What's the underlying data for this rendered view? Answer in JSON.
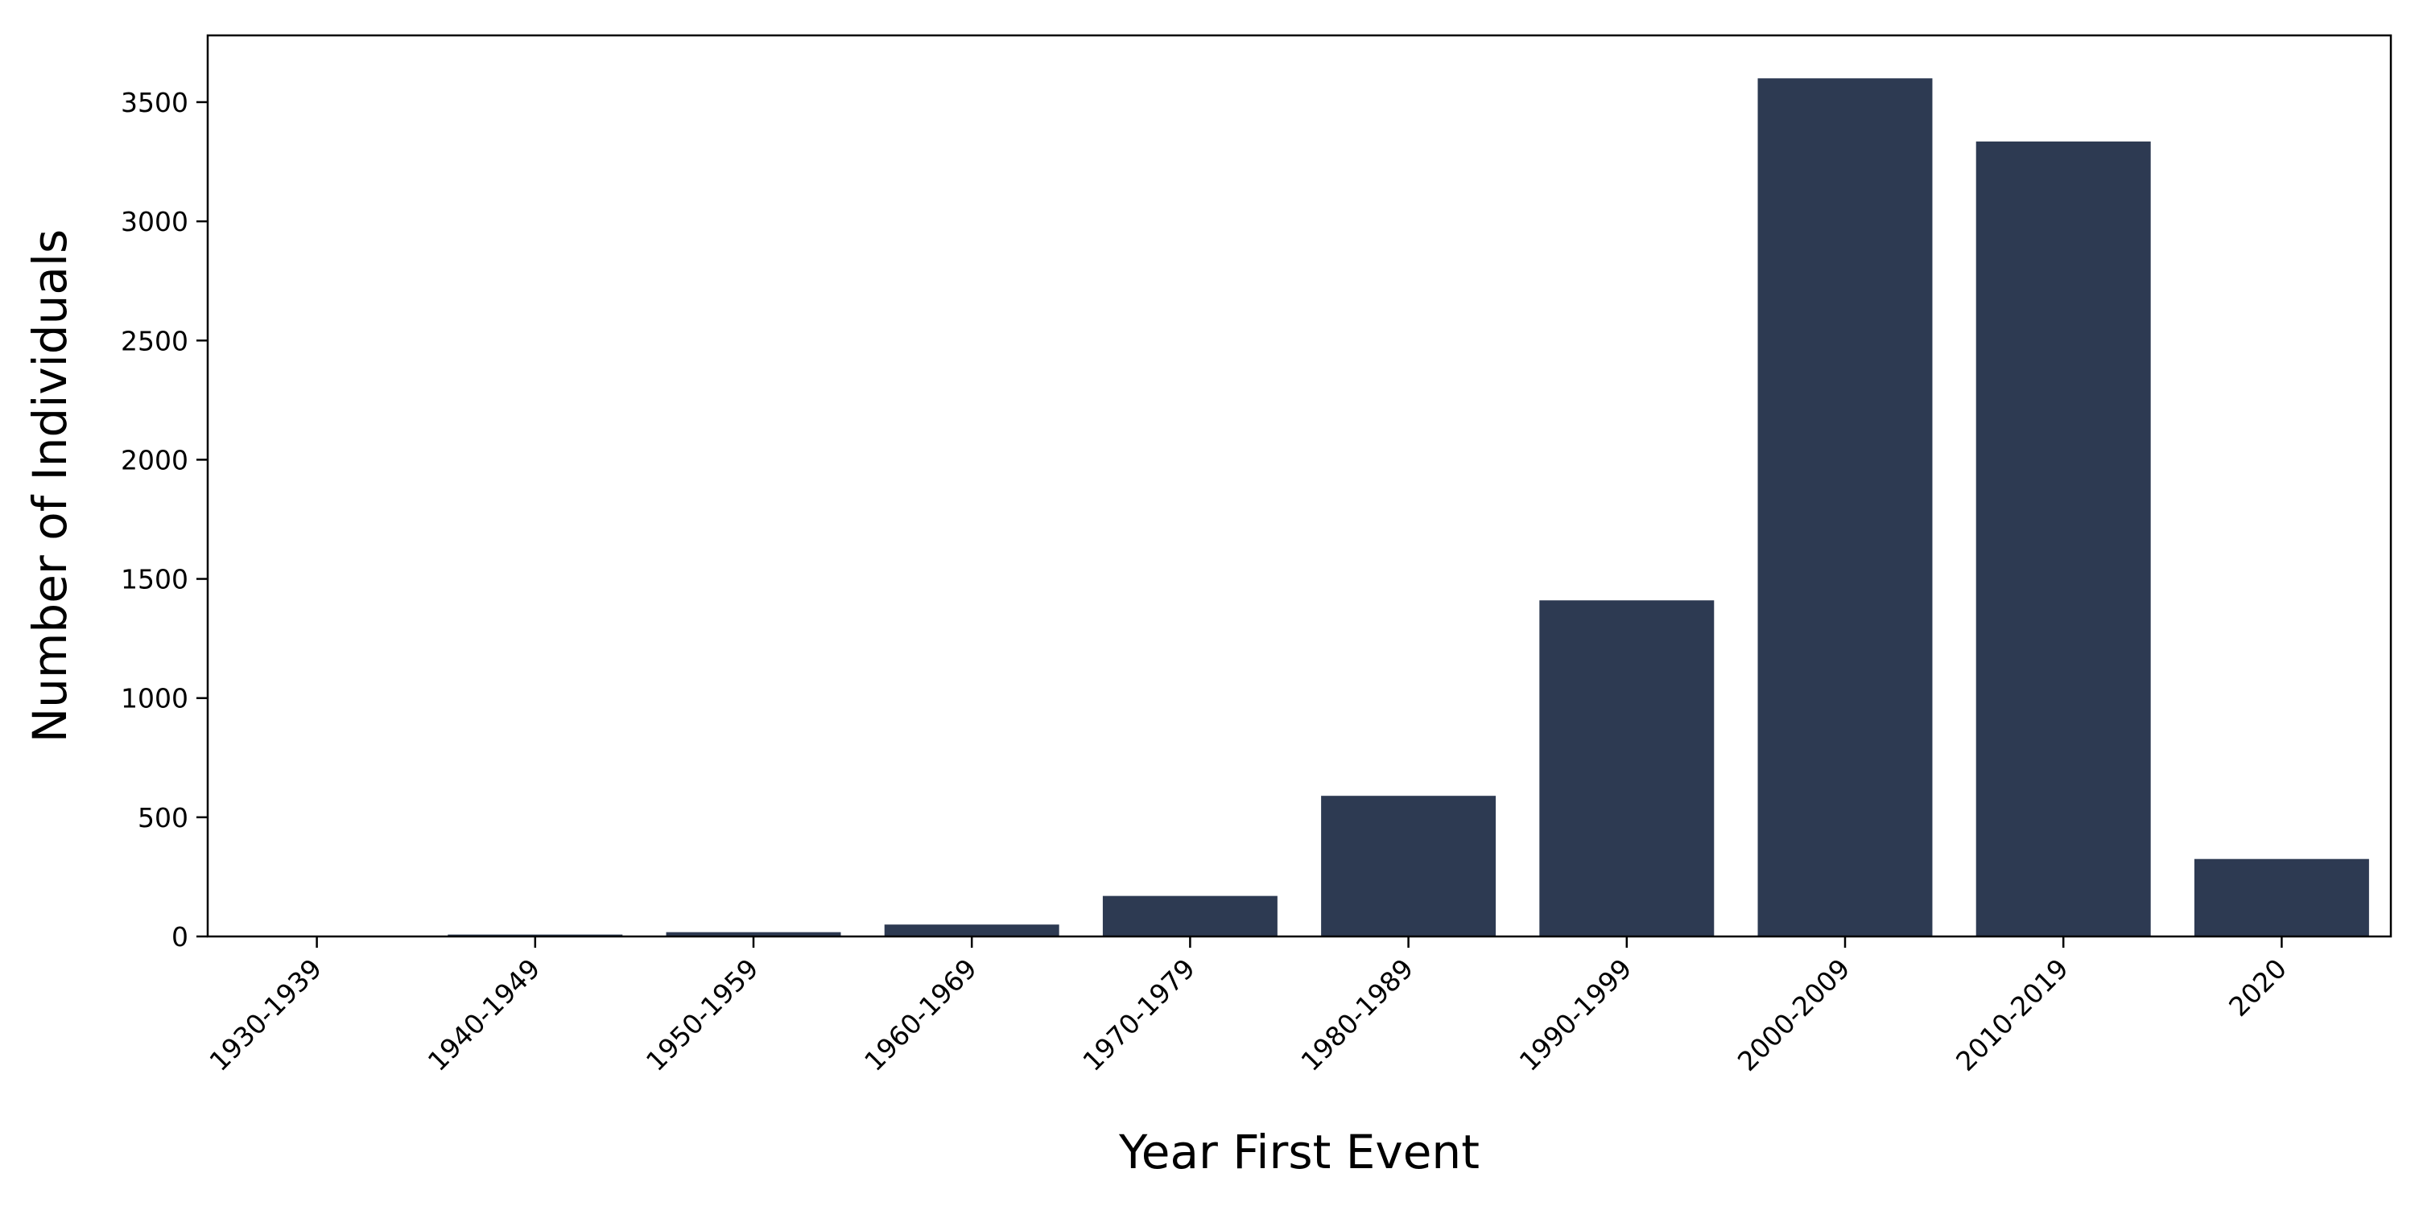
{
  "chart_data": {
    "type": "bar",
    "title": "",
    "xlabel": "Year First Event",
    "ylabel": "Number of Individuals",
    "categories": [
      "1930-1939",
      "1940-1949",
      "1950-1959",
      "1960-1969",
      "1970-1979",
      "1980-1989",
      "1990-1999",
      "2000-2009",
      "2010-2019",
      "2020"
    ],
    "values": [
      2,
      8,
      18,
      50,
      170,
      590,
      1410,
      3600,
      3335,
      325
    ],
    "ylim": [
      0,
      3780
    ],
    "yticks": [
      0,
      500,
      1000,
      1500,
      2000,
      2500,
      3000,
      3500
    ],
    "bar_color": "#2d3a52",
    "grid": false,
    "legend": "none"
  }
}
